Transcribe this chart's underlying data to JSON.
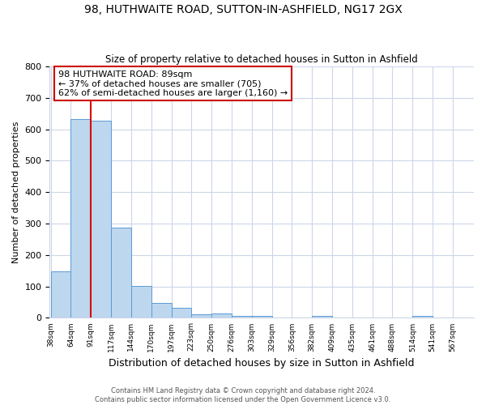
{
  "title": "98, HUTHWAITE ROAD, SUTTON-IN-ASHFIELD, NG17 2GX",
  "subtitle": "Size of property relative to detached houses in Sutton in Ashfield",
  "xlabel": "Distribution of detached houses by size in Sutton in Ashfield",
  "ylabel": "Number of detached properties",
  "bin_labels": [
    "38sqm",
    "64sqm",
    "91sqm",
    "117sqm",
    "144sqm",
    "170sqm",
    "197sqm",
    "223sqm",
    "250sqm",
    "276sqm",
    "303sqm",
    "329sqm",
    "356sqm",
    "382sqm",
    "409sqm",
    "435sqm",
    "461sqm",
    "488sqm",
    "514sqm",
    "541sqm",
    "567sqm"
  ],
  "bar_heights": [
    148,
    632,
    628,
    287,
    102,
    47,
    31,
    11,
    14,
    7,
    7,
    0,
    0,
    5,
    0,
    0,
    0,
    0,
    6,
    0,
    0
  ],
  "bar_color": "#bdd7ee",
  "bar_edge_color": "#5b9bd5",
  "property_line_index": 2,
  "property_line_color": "#dd0000",
  "annotation_text": "98 HUTHWAITE ROAD: 89sqm\n← 37% of detached houses are smaller (705)\n62% of semi-detached houses are larger (1,160) →",
  "annotation_box_color": "#ffffff",
  "annotation_box_edge_color": "#cc0000",
  "ylim": [
    0,
    800
  ],
  "yticks": [
    0,
    100,
    200,
    300,
    400,
    500,
    600,
    700,
    800
  ],
  "footer_line1": "Contains HM Land Registry data © Crown copyright and database right 2024.",
  "footer_line2": "Contains public sector information licensed under the Open Government Licence v3.0.",
  "bg_color": "#ffffff",
  "grid_color": "#ccd6e8"
}
